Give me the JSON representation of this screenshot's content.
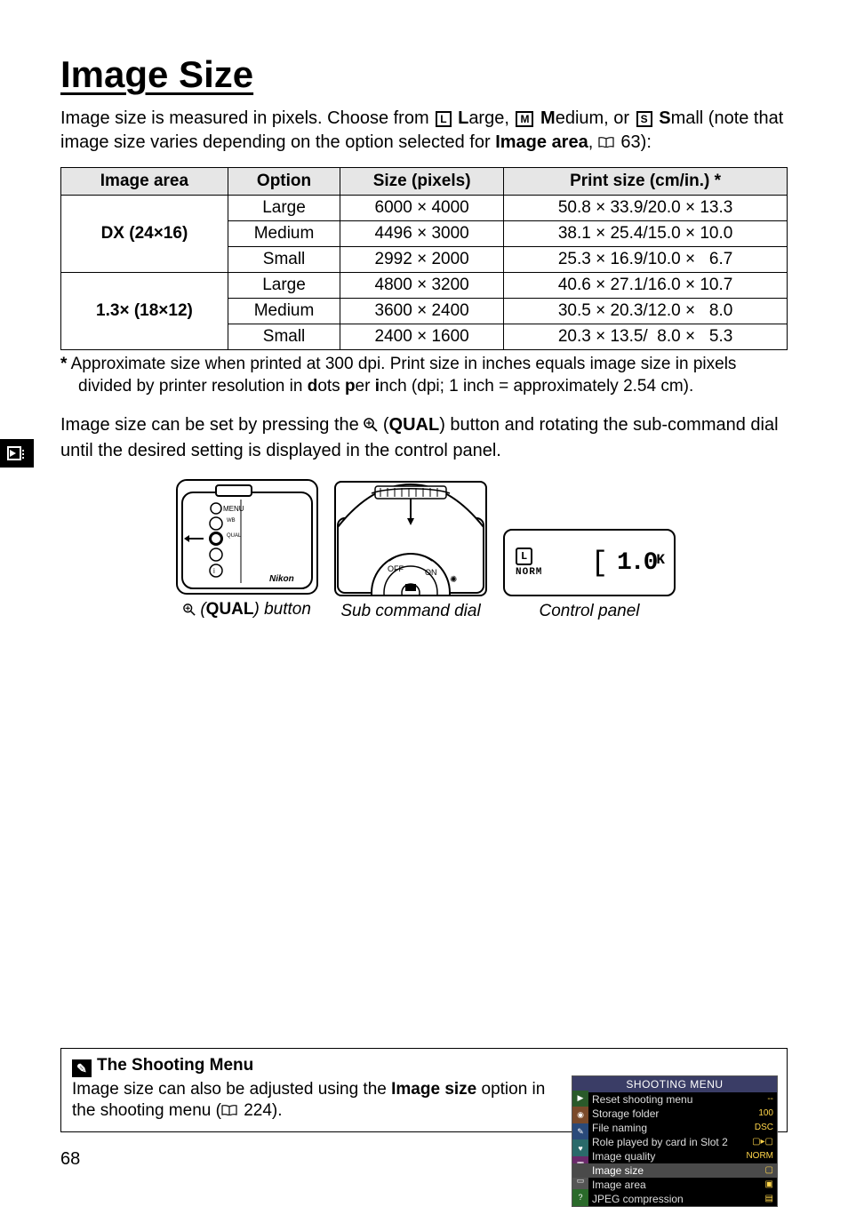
{
  "title": "Image Size",
  "intro_pre": "Image size is measured in pixels.  Choose from ",
  "intro_l": "L",
  "intro_large": "arge, ",
  "intro_m": "M",
  "intro_medium": "edium, or ",
  "intro_s": "S",
  "intro_small": "mall (note that image size varies depending on the option selected for ",
  "intro_bold": "Image area",
  "intro_post": ", ",
  "intro_ref": "63):",
  "table": {
    "headers": [
      "Image area",
      "Option",
      "Size (pixels)",
      "Print size (cm/in.) *"
    ],
    "areas": [
      {
        "name": "DX (24×16)",
        "rows": [
          {
            "opt": "Large",
            "px": "6000 × 4000",
            "pr": "50.8 × 33.9/20.0 × 13.3"
          },
          {
            "opt": "Medium",
            "px": "4496 × 3000",
            "pr": "38.1 × 25.4/15.0 × 10.0"
          },
          {
            "opt": "Small",
            "px": "2992 × 2000",
            "pr": "25.3 × 16.9/10.0 ×   6.7"
          }
        ]
      },
      {
        "name": "1.3× (18×12)",
        "rows": [
          {
            "opt": "Large",
            "px": "4800 × 3200",
            "pr": "40.6 × 27.1/16.0 × 10.7"
          },
          {
            "opt": "Medium",
            "px": "3600 × 2400",
            "pr": "30.5 × 20.3/12.0 ×   8.0"
          },
          {
            "opt": "Small",
            "px": "2400 × 1600",
            "pr": "20.3 × 13.5/  8.0 ×   5.3"
          }
        ]
      }
    ]
  },
  "footnote_star": "*",
  "footnote_a": "  Approximate size when printed at 300 dpi.  Print size in inches equals image size in pixels divided by printer resolution in ",
  "footnote_d": "d",
  "footnote_dt": "ots ",
  "footnote_p": "p",
  "footnote_pt": "er ",
  "footnote_i": "i",
  "footnote_b": "nch (dpi; 1 inch = approximately 2.54 cm).",
  "para2_a": "Image size can be set by pressing the ",
  "para2_qual": "QUAL",
  "para2_b": ") button and rotating the sub-command dial until the desired setting is displayed in the control panel.",
  "diagram": {
    "qual_pre": " (",
    "qual": "QUAL",
    "qual_post": ") button",
    "sub": "Sub command dial",
    "panel": "Control panel"
  },
  "panel": {
    "norm": "NORM",
    "l": "L",
    "bracket_l": "[",
    "num": "1.0",
    "k": "K"
  },
  "note": {
    "title": "The Shooting Menu",
    "body_a": "Image size can also be adjusted using the ",
    "body_bold": "Image size",
    "body_b": " option in the shooting menu (",
    "body_ref": "224)."
  },
  "menu": {
    "header": "SHOOTING MENU",
    "rows": [
      {
        "l": "Reset shooting menu",
        "v": "--"
      },
      {
        "l": "Storage folder",
        "v": "100"
      },
      {
        "l": "File naming",
        "v": "DSC"
      },
      {
        "l": "Role played by card in Slot 2",
        "v": "▢▸▢"
      },
      {
        "l": "Image quality",
        "v": "NORM"
      },
      {
        "l": "Image size",
        "v": "▢",
        "sel": true
      },
      {
        "l": "Image area",
        "v": "▣"
      },
      {
        "l": "JPEG compression",
        "v": "▤"
      }
    ],
    "tabs": [
      "▶",
      "◉",
      "✎",
      "♥",
      "▦",
      "▭",
      "?"
    ]
  },
  "page_num": "68"
}
